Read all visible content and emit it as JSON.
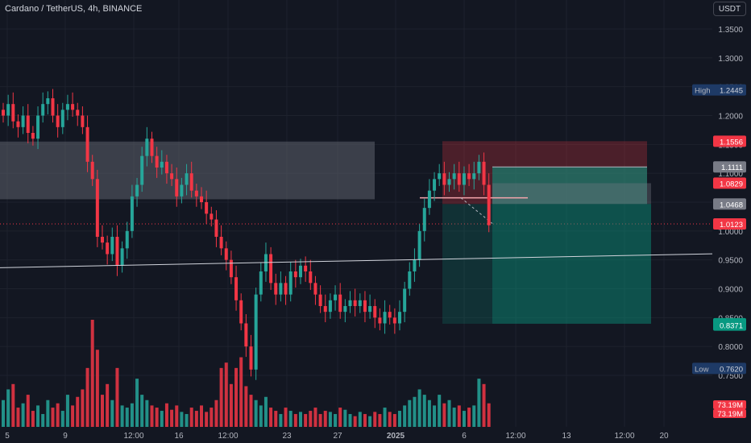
{
  "header": {
    "symbol_title": "Cardano / TetherUS, 4h, BINANCE",
    "currency": "USDT"
  },
  "colors": {
    "background": "#131722",
    "up": "#26a69a",
    "down": "#f23645",
    "grid": "#1e222d",
    "axis_text": "#b2b5be",
    "zone": "#434651",
    "stop_zone": "#f23645",
    "target_zone": "#089981"
  },
  "chart_data": {
    "type": "candlestick",
    "ylim": [
      0.74,
      1.38
    ],
    "y_ticks": [
      "1.3500",
      "1.3000",
      "1.2500",
      "1.2000",
      "1.1500",
      "1.1000",
      "1.0500",
      "1.0000",
      "0.9500",
      "0.9000",
      "0.8500",
      "0.8000",
      "0.7500"
    ],
    "x_ticks": [
      "5",
      "9",
      "12:00",
      "16",
      "12:00",
      "23",
      "27",
      "2025",
      "6",
      "12:00",
      "13",
      "12:00",
      "20"
    ],
    "price_labels": [
      {
        "value": 1.2445,
        "prefix": "High",
        "text": "1.2445",
        "color": "#1e3a66"
      },
      {
        "value": 1.1556,
        "text": "1.1556",
        "color": "#f23645"
      },
      {
        "value": 1.1111,
        "text": "1.1111",
        "color": "#787b86"
      },
      {
        "value": 1.0829,
        "text": "1.0829",
        "color": "#f23645"
      },
      {
        "value": 1.0468,
        "text": "1.0468",
        "color": "#787b86"
      },
      {
        "value": 1.0123,
        "text": "1.0123",
        "color": "#f23645"
      },
      {
        "value": 0.8394,
        "text": "0.8394",
        "color": "#089981"
      },
      {
        "value": 0.8371,
        "text": "0.8371",
        "color": "#089981"
      },
      {
        "value": 0.762,
        "prefix": "Low",
        "text": "0.7620",
        "color": "#1e3a66"
      }
    ],
    "volume_labels": [
      "73.19M",
      "73.19M"
    ],
    "current_price": 1.0123,
    "zones": [
      {
        "name": "supply-zone",
        "top": 1.155,
        "bottom": 1.055
      }
    ],
    "position": {
      "entry": 1.0468,
      "stop": 1.1556,
      "target": 0.8394,
      "mid_line": 1.1111,
      "top2": 1.0829
    },
    "trendline": {
      "y_start": 0.9365,
      "y_end": 0.9605
    },
    "close_path": [
      1.2,
      1.22,
      1.19,
      1.18,
      1.2,
      1.17,
      1.16,
      1.2,
      1.22,
      1.23,
      1.2,
      1.18,
      1.21,
      1.22,
      1.21,
      1.2,
      1.18,
      1.12,
      1.09,
      0.99,
      0.98,
      0.96,
      0.99,
      0.94,
      0.97,
      1.0,
      1.06,
      1.08,
      1.13,
      1.16,
      1.13,
      1.11,
      1.12,
      1.1,
      1.09,
      1.06,
      1.08,
      1.1,
      1.07,
      1.06,
      1.05,
      1.03,
      1.02,
      0.99,
      0.97,
      0.95,
      0.92,
      0.88,
      0.84,
      0.8,
      0.76,
      0.89,
      0.93,
      0.96,
      0.91,
      0.89,
      0.91,
      0.89,
      0.93,
      0.92,
      0.94,
      0.93,
      0.91,
      0.89,
      0.87,
      0.86,
      0.88,
      0.89,
      0.86,
      0.87,
      0.88,
      0.87,
      0.88,
      0.86,
      0.87,
      0.85,
      0.84,
      0.86,
      0.85,
      0.84,
      0.86,
      0.9,
      0.93,
      0.95,
      1.0,
      1.04,
      1.07,
      1.09,
      1.1,
      1.08,
      1.09,
      1.1,
      1.08,
      1.1,
      1.09,
      1.1,
      1.12,
      1.08,
      1.01
    ],
    "volume_path": [
      0.25,
      0.35,
      0.4,
      0.18,
      0.22,
      0.3,
      0.15,
      0.2,
      0.12,
      0.25,
      0.18,
      0.22,
      0.15,
      0.3,
      0.2,
      0.28,
      0.35,
      0.55,
      1.0,
      0.72,
      0.3,
      0.4,
      0.25,
      0.55,
      0.2,
      0.18,
      0.22,
      0.45,
      0.3,
      0.25,
      0.2,
      0.18,
      0.15,
      0.22,
      0.16,
      0.2,
      0.14,
      0.12,
      0.18,
      0.15,
      0.2,
      0.14,
      0.18,
      0.25,
      0.55,
      0.6,
      0.4,
      0.55,
      0.65,
      0.38,
      0.3,
      0.25,
      0.2,
      0.28,
      0.18,
      0.15,
      0.12,
      0.18,
      0.15,
      0.12,
      0.14,
      0.12,
      0.15,
      0.18,
      0.12,
      0.15,
      0.14,
      0.12,
      0.18,
      0.16,
      0.12,
      0.1,
      0.14,
      0.12,
      0.1,
      0.14,
      0.12,
      0.18,
      0.14,
      0.12,
      0.15,
      0.2,
      0.25,
      0.28,
      0.35,
      0.3,
      0.25,
      0.2,
      0.3,
      0.22,
      0.25,
      0.18,
      0.2,
      0.15,
      0.18,
      0.2,
      0.45,
      0.4,
      0.22
    ]
  }
}
